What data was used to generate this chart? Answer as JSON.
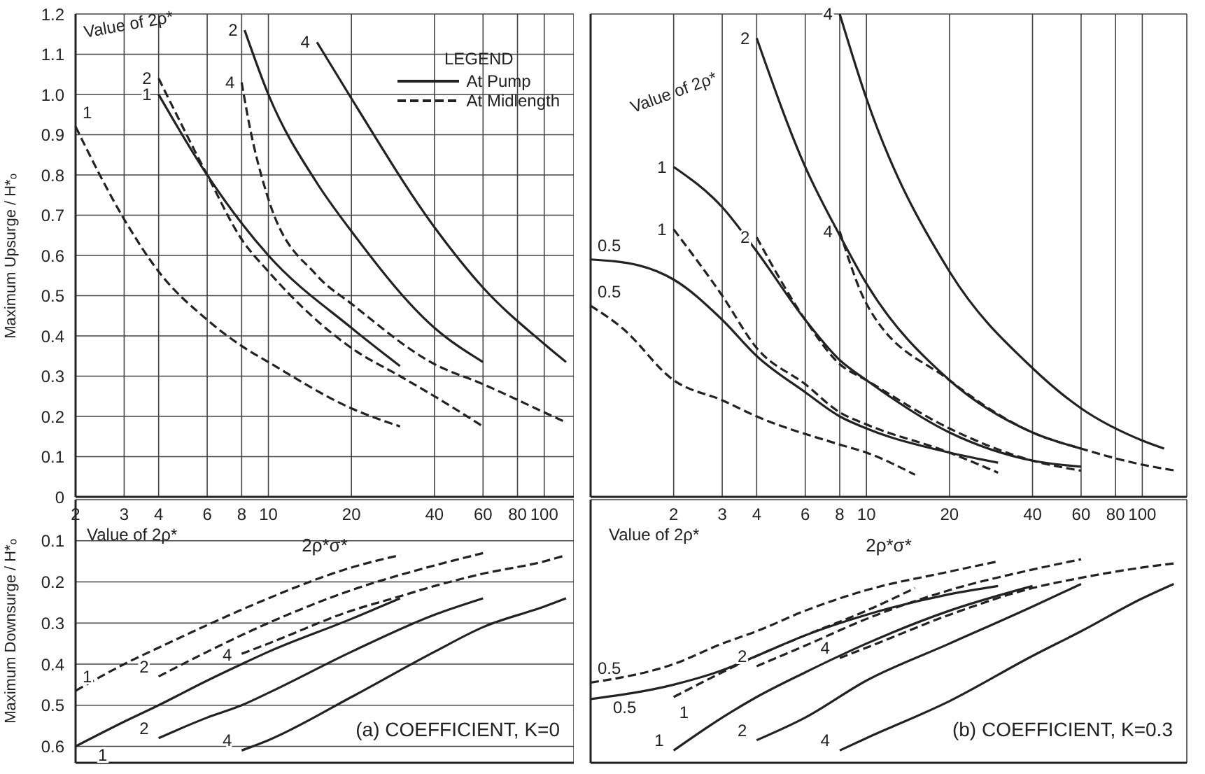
{
  "chart_data": [
    {
      "type": "line",
      "ylabel": "Maximum Upsurge / H*ₒ",
      "xlabel": "2ρ*σ*",
      "log": "x",
      "grid": true,
      "legend_title": "LEGEND",
      "xlim": [
        2,
        128
      ],
      "xticks": [
        2,
        3,
        4,
        6,
        8,
        10,
        20,
        40,
        60,
        80,
        100
      ],
      "ylim": [
        0,
        1.2
      ],
      "yticks": [
        0,
        0.1,
        0.2,
        0.3,
        0.4,
        0.5,
        0.6,
        0.7,
        0.8,
        0.9,
        {
          "value": 1,
          "label": "1.0"
        },
        1.1,
        1.2
      ],
      "series": [
        {
          "name": "1",
          "color": "#222222",
          "line_style": "solid",
          "x": [
            4,
            6,
            8,
            10,
            20,
            30
          ],
          "values": [
            1.0,
            0.8,
            0.68,
            0.6,
            0.42,
            0.325
          ]
        },
        {
          "name": "1",
          "color": "#222222",
          "line_style": "dashed",
          "x": [
            2,
            3,
            4,
            6,
            8,
            10,
            20,
            30
          ],
          "values": [
            0.92,
            0.69,
            0.56,
            0.44,
            0.375,
            0.335,
            0.22,
            0.175
          ]
        },
        {
          "name": "2",
          "color": "#222222",
          "line_style": "dashed",
          "x": [
            4,
            6,
            8,
            10,
            20,
            30,
            40,
            60
          ],
          "values": [
            1.04,
            0.8,
            0.64,
            0.56,
            0.37,
            0.3,
            0.25,
            0.175
          ]
        },
        {
          "name": "2",
          "color": "#222222",
          "line_style": "solid",
          "x": [
            8.2,
            10,
            15,
            20,
            40,
            60
          ],
          "values": [
            1.16,
            1.0,
            0.78,
            0.66,
            0.42,
            0.335
          ]
        },
        {
          "name": "4",
          "color": "#222222",
          "line_style": "dashed",
          "x": [
            8,
            8.5,
            10,
            15,
            20,
            40,
            60,
            100,
            120
          ],
          "values": [
            1.03,
            0.93,
            0.74,
            0.55,
            0.48,
            0.33,
            0.28,
            0.21,
            0.185
          ]
        },
        {
          "name": "4",
          "color": "#222222",
          "line_style": "solid",
          "x": [
            15,
            20,
            40,
            60,
            100,
            120
          ],
          "values": [
            1.13,
            0.99,
            0.67,
            0.52,
            0.38,
            0.335
          ]
        }
      ],
      "annotations": [
        "Value of 2ρ*",
        "At Pump",
        "At Midlength"
      ]
    },
    {
      "type": "line",
      "xlabel": "2ρ*σ*",
      "log": "x",
      "grid": true,
      "tick_labels": "x",
      "xlim": [
        1,
        145
      ],
      "xticks": [
        2,
        3,
        4,
        6,
        8,
        10,
        20,
        40,
        60,
        80,
        100
      ],
      "ylim": [
        0,
        1.2
      ],
      "yticks": [
        0,
        0.1,
        0.2,
        0.3,
        0.4,
        0.5,
        0.6,
        0.7,
        0.8,
        0.9,
        1,
        1.1,
        1.2
      ],
      "series": [
        {
          "name": "0.5",
          "color": "#222222",
          "line_style": "solid",
          "x": [
            1,
            1.5,
            2,
            3,
            4,
            6,
            8,
            10,
            20,
            30
          ],
          "values": [
            0.59,
            0.575,
            0.54,
            0.44,
            0.35,
            0.26,
            0.2,
            0.17,
            0.11,
            0.085
          ]
        },
        {
          "name": "0.5",
          "color": "#222222",
          "line_style": "dashed",
          "x": [
            1,
            1.3,
            2,
            3,
            4,
            8,
            10,
            15
          ],
          "values": [
            0.475,
            0.42,
            0.29,
            0.24,
            0.2,
            0.13,
            0.11,
            0.055
          ]
        },
        {
          "name": "1",
          "color": "#222222",
          "line_style": "solid",
          "x": [
            2,
            3,
            4,
            6,
            8,
            10,
            20,
            40,
            60
          ],
          "values": [
            0.82,
            0.72,
            0.61,
            0.44,
            0.34,
            0.29,
            0.16,
            0.09,
            0.075
          ]
        },
        {
          "name": "1",
          "color": "#222222",
          "line_style": "dashed",
          "x": [
            2,
            3,
            4,
            6,
            8,
            10,
            20,
            30
          ],
          "values": [
            0.665,
            0.5,
            0.37,
            0.28,
            0.21,
            0.18,
            0.11,
            0.06
          ]
        },
        {
          "name": "2",
          "color": "#222222",
          "line_style": "solid",
          "x": [
            4,
            6,
            8,
            10,
            20,
            40,
            60
          ],
          "values": [
            1.14,
            0.82,
            0.65,
            0.53,
            0.29,
            0.16,
            0.12
          ]
        },
        {
          "name": "2",
          "color": "#222222",
          "line_style": "dashed",
          "x": [
            4,
            6,
            8,
            10,
            20,
            40,
            60
          ],
          "values": [
            0.645,
            0.44,
            0.33,
            0.29,
            0.17,
            0.09,
            0.065
          ]
        },
        {
          "name": "4",
          "color": "#222222",
          "line_style": "solid",
          "x": [
            8,
            10,
            20,
            40,
            60,
            100,
            120
          ],
          "values": [
            1.2,
            0.99,
            0.56,
            0.32,
            0.22,
            0.14,
            0.12
          ]
        },
        {
          "name": "4",
          "color": "#222222",
          "line_style": "dashed",
          "x": [
            8,
            10,
            20,
            40,
            60,
            100,
            130
          ],
          "values": [
            0.66,
            0.48,
            0.29,
            0.16,
            0.12,
            0.08,
            0.066
          ]
        }
      ],
      "annotations": [
        "Value of 2ρ*"
      ]
    },
    {
      "type": "line",
      "title": "(a) COEFFICIENT, K=0",
      "ylabel": "Maximum Downsurge / H*ₒ",
      "log": "x",
      "grid": true,
      "tick_labels": "y",
      "xlim": [
        2,
        128
      ],
      "xticks": [
        2,
        3,
        4,
        6,
        8,
        10,
        20,
        40,
        60,
        80,
        100
      ],
      "ylim": [
        0.64,
        0
      ],
      "yticks": [
        0.1,
        0.2,
        0.3,
        0.4,
        0.5,
        0.6
      ],
      "series": [
        {
          "name": "1",
          "color": "#222222",
          "line_style": "dashed",
          "x": [
            2,
            3,
            4,
            6,
            10,
            20,
            30
          ],
          "values": [
            0.465,
            0.4,
            0.36,
            0.305,
            0.24,
            0.165,
            0.135
          ]
        },
        {
          "name": "2",
          "color": "#222222",
          "line_style": "dashed",
          "x": [
            4,
            6,
            10,
            20,
            40,
            60
          ],
          "values": [
            0.43,
            0.37,
            0.3,
            0.22,
            0.16,
            0.13
          ]
        },
        {
          "name": "4",
          "color": "#222222",
          "line_style": "dashed",
          "x": [
            8,
            10,
            20,
            30,
            40,
            60,
            100,
            120
          ],
          "values": [
            0.375,
            0.35,
            0.27,
            0.235,
            0.21,
            0.18,
            0.15,
            0.135
          ]
        },
        {
          "name": "1",
          "color": "#222222",
          "line_style": "solid",
          "x": [
            2,
            3,
            4,
            6,
            8,
            10,
            20,
            30
          ],
          "values": [
            0.6,
            0.54,
            0.5,
            0.44,
            0.4,
            0.37,
            0.29,
            0.24
          ]
        },
        {
          "name": "2",
          "color": "#222222",
          "line_style": "solid",
          "x": [
            4,
            6,
            8,
            10,
            20,
            40,
            60
          ],
          "values": [
            0.58,
            0.53,
            0.5,
            0.47,
            0.37,
            0.28,
            0.24
          ]
        },
        {
          "name": "4",
          "color": "#222222",
          "line_style": "solid",
          "x": [
            8,
            10,
            20,
            40,
            60,
            100,
            120
          ],
          "values": [
            0.61,
            0.585,
            0.48,
            0.37,
            0.31,
            0.26,
            0.24
          ]
        }
      ],
      "annotations": [
        "Value of 2ρ*"
      ]
    },
    {
      "type": "line",
      "title": "(b) COEFFICIENT, K=0.3",
      "log": "x",
      "grid": true,
      "tick_labels": false,
      "xlim": [
        1,
        145
      ],
      "xticks": [
        2,
        3,
        4,
        6,
        8,
        10,
        20,
        40,
        60,
        80,
        100
      ],
      "ylim": [
        0.64,
        0
      ],
      "yticks": [
        0.1,
        0.2,
        0.3,
        0.4,
        0.5,
        0.6
      ],
      "series": [
        {
          "name": "0.5",
          "color": "#222222",
          "line_style": "dashed",
          "x": [
            1,
            2,
            3,
            4,
            6,
            10,
            20,
            30
          ],
          "values": [
            0.445,
            0.4,
            0.35,
            0.32,
            0.27,
            0.22,
            0.175,
            0.15
          ]
        },
        {
          "name": "1",
          "color": "#222222",
          "line_style": "dashed",
          "x": [
            2,
            3,
            4,
            6,
            10,
            15
          ],
          "values": [
            0.48,
            0.42,
            0.38,
            0.33,
            0.27,
            0.215
          ]
        },
        {
          "name": "2",
          "color": "#222222",
          "line_style": "dashed",
          "x": [
            4,
            6,
            10,
            20,
            40,
            60
          ],
          "values": [
            0.405,
            0.355,
            0.29,
            0.22,
            0.17,
            0.145
          ]
        },
        {
          "name": "4",
          "color": "#222222",
          "line_style": "dashed",
          "x": [
            8,
            10,
            20,
            40,
            60,
            100,
            130
          ],
          "values": [
            0.385,
            0.36,
            0.28,
            0.215,
            0.19,
            0.165,
            0.155
          ]
        },
        {
          "name": "0.5",
          "color": "#222222",
          "line_style": "solid",
          "x": [
            1,
            2,
            3,
            4,
            6,
            10,
            20,
            30
          ],
          "values": [
            0.485,
            0.45,
            0.415,
            0.38,
            0.33,
            0.28,
            0.23,
            0.21
          ]
        },
        {
          "name": "1",
          "color": "#222222",
          "line_style": "solid",
          "x": [
            2,
            3,
            4,
            6,
            10,
            20,
            40
          ],
          "values": [
            0.61,
            0.53,
            0.48,
            0.42,
            0.35,
            0.27,
            0.21
          ]
        },
        {
          "name": "2",
          "color": "#222222",
          "line_style": "solid",
          "x": [
            4,
            6,
            10,
            20,
            40,
            60
          ],
          "values": [
            0.585,
            0.53,
            0.44,
            0.35,
            0.26,
            0.205
          ]
        },
        {
          "name": "4",
          "color": "#222222",
          "line_style": "solid",
          "x": [
            8,
            10,
            20,
            40,
            60,
            100,
            130
          ],
          "values": [
            0.61,
            0.58,
            0.49,
            0.38,
            0.32,
            0.24,
            0.205
          ]
        }
      ],
      "annotations": [
        "Value of 2ρ*"
      ]
    }
  ]
}
